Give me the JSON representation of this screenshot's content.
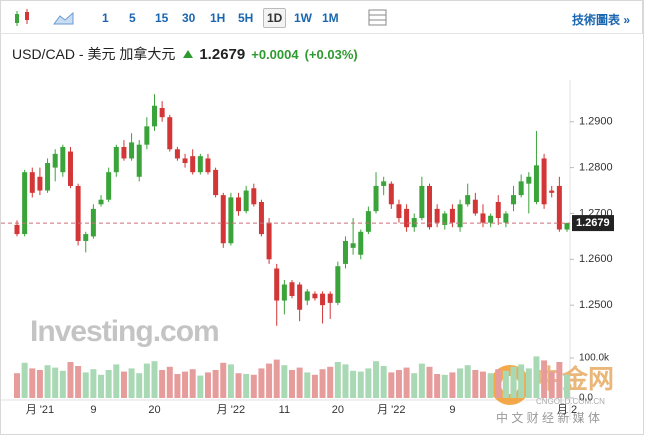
{
  "toolbar": {
    "buttons": [
      "1",
      "5",
      "15",
      "30",
      "1H",
      "5H",
      "1D",
      "1W",
      "1M"
    ],
    "active": "1D",
    "link": "技術圖表 »"
  },
  "chart_data": {
    "type": "candlestick",
    "title": "USD/CAD - 美元 加拿大元",
    "price": 1.2679,
    "change": "+0.0004",
    "change_pct": "(+0.03%)",
    "up_color": "#3aa33a",
    "down_color": "#d23636",
    "volume_up_color": "#a9d9b4",
    "volume_down_color": "#e79c9c",
    "last_line_color": "#c9707a",
    "categories": [
      null,
      null,
      null,
      "月 '21",
      null,
      null,
      null,
      null,
      null,
      null,
      "9",
      null,
      null,
      null,
      null,
      null,
      null,
      null,
      "20",
      null,
      null,
      null,
      null,
      null,
      null,
      null,
      null,
      null,
      "月 '22",
      null,
      null,
      null,
      null,
      null,
      null,
      "11",
      null,
      null,
      null,
      null,
      null,
      null,
      "20",
      null,
      null,
      null,
      null,
      null,
      null,
      "月 '22",
      null,
      null,
      null,
      null,
      null,
      null,
      null,
      "9",
      null,
      null,
      null,
      null,
      null,
      null,
      null,
      null,
      null,
      null,
      null,
      null,
      null,
      null,
      "月 2"
    ],
    "open": [
      1.2675,
      1.2655,
      1.279,
      1.278,
      1.275,
      1.28,
      1.279,
      1.2835,
      1.276,
      1.264,
      1.265,
      1.272,
      1.273,
      1.279,
      1.2845,
      1.282,
      1.278,
      1.285,
      1.289,
      1.293,
      1.291,
      1.284,
      1.282,
      1.2825,
      1.279,
      1.282,
      1.2795,
      1.274,
      1.2635,
      1.2735,
      1.2705,
      1.2755,
      1.2725,
      1.268,
      1.258,
      1.251,
      1.255,
      1.2545,
      1.251,
      1.2525,
      1.2525,
      1.2525,
      1.2505,
      1.259,
      1.2625,
      1.261,
      1.266,
      1.2705,
      1.276,
      1.2765,
      1.272,
      1.271,
      1.267,
      1.269,
      1.276,
      1.271,
      1.2675,
      1.271,
      1.267,
      1.272,
      1.273,
      1.27,
      1.268,
      1.2725,
      1.268,
      1.272,
      1.274,
      1.2765,
      1.2725,
      1.282,
      1.275,
      1.276,
      1.2665
    ],
    "high": [
      1.2685,
      1.2795,
      1.28,
      1.28,
      1.282,
      1.284,
      1.285,
      1.2845,
      1.2765,
      1.266,
      1.272,
      1.274,
      1.28,
      1.285,
      1.286,
      1.2875,
      1.286,
      1.291,
      1.296,
      1.2945,
      1.2915,
      1.2845,
      1.283,
      1.284,
      1.283,
      1.283,
      1.28,
      1.2745,
      1.2745,
      1.2745,
      1.276,
      1.2765,
      1.273,
      1.269,
      1.259,
      1.2555,
      1.2555,
      1.255,
      1.2535,
      1.253,
      1.253,
      1.253,
      1.2595,
      1.265,
      1.269,
      1.2665,
      1.2715,
      1.279,
      1.278,
      1.277,
      1.273,
      1.272,
      1.27,
      1.278,
      1.2765,
      1.272,
      1.2705,
      1.272,
      1.273,
      1.2765,
      1.2745,
      1.272,
      1.27,
      1.274,
      1.2705,
      1.276,
      1.2785,
      1.279,
      1.288,
      1.283,
      1.276,
      1.278,
      1.268
    ],
    "low": [
      1.265,
      1.265,
      1.2735,
      1.274,
      1.2745,
      1.277,
      1.278,
      1.2755,
      1.263,
      1.2615,
      1.2645,
      1.2715,
      1.2725,
      1.278,
      1.2815,
      1.2815,
      1.277,
      1.284,
      1.288,
      1.29,
      1.2835,
      1.2815,
      1.28,
      1.2785,
      1.2785,
      1.2785,
      1.2735,
      1.2625,
      1.263,
      1.2695,
      1.27,
      1.2715,
      1.265,
      1.259,
      1.2455,
      1.248,
      1.2515,
      1.2465,
      1.25,
      1.251,
      1.246,
      1.247,
      1.25,
      1.258,
      1.261,
      1.26,
      1.2655,
      1.27,
      1.274,
      1.271,
      1.268,
      1.266,
      1.266,
      1.2685,
      1.2665,
      1.267,
      1.2665,
      1.267,
      1.266,
      1.2715,
      1.2695,
      1.267,
      1.267,
      1.2675,
      1.267,
      1.2705,
      1.2735,
      1.27,
      1.272,
      1.271,
      1.2735,
      1.266,
      1.266
    ],
    "close": [
      1.2655,
      1.279,
      1.2745,
      1.275,
      1.281,
      1.283,
      1.2845,
      1.276,
      1.264,
      1.2655,
      1.271,
      1.273,
      1.279,
      1.2845,
      1.282,
      1.2855,
      1.285,
      1.289,
      1.2935,
      1.291,
      1.284,
      1.282,
      1.281,
      1.279,
      1.2825,
      1.279,
      1.274,
      1.2635,
      1.2735,
      1.2705,
      1.275,
      1.272,
      1.2655,
      1.26,
      1.251,
      1.2545,
      1.252,
      1.249,
      1.253,
      1.2515,
      1.25,
      1.2505,
      1.2585,
      1.264,
      1.2635,
      1.266,
      1.2705,
      1.276,
      1.277,
      1.272,
      1.269,
      1.267,
      1.269,
      1.276,
      1.267,
      1.268,
      1.27,
      1.268,
      1.272,
      1.274,
      1.27,
      1.268,
      1.2695,
      1.269,
      1.27,
      1.274,
      1.277,
      1.278,
      1.2805,
      1.272,
      1.2745,
      1.2665,
      1.2679
    ],
    "volume": [
      62000,
      88000,
      74000,
      70000,
      82000,
      76000,
      68000,
      90000,
      80000,
      64000,
      72000,
      58000,
      70000,
      84000,
      66000,
      74000,
      62000,
      86000,
      92000,
      70000,
      78000,
      60000,
      66000,
      72000,
      56000,
      64000,
      70000,
      88000,
      84000,
      62000,
      60000,
      58000,
      74000,
      86000,
      96000,
      82000,
      70000,
      76000,
      64000,
      58000,
      72000,
      78000,
      90000,
      84000,
      68000,
      66000,
      74000,
      92000,
      80000,
      64000,
      70000,
      76000,
      62000,
      86000,
      78000,
      60000,
      58000,
      64000,
      74000,
      82000,
      70000,
      66000,
      62000,
      72000,
      68000,
      78000,
      84000,
      74000,
      104000,
      94000,
      66000,
      90000,
      58000
    ],
    "ylim": [
      1.2424,
      1.2978
    ],
    "yticks": [
      {
        "value": 1.29,
        "label": "1.2900"
      },
      {
        "value": 1.28,
        "label": "1.2800"
      },
      {
        "value": 1.27,
        "label": "1.2700"
      },
      {
        "value": 1.26,
        "label": "1.2600"
      },
      {
        "value": 1.25,
        "label": "1.2500"
      }
    ],
    "volume_ylim": [
      0,
      100000
    ],
    "volume_ticks": [
      {
        "value": 100000,
        "label": "100.0k"
      },
      {
        "value": 0,
        "label": "0.0"
      }
    ]
  },
  "watermarks": {
    "brand": "Investing.com",
    "site_cn": "中金网",
    "site_en": "CNGOLD.COM.CN",
    "slogan": "中 文 财 经 新 媒 体"
  }
}
